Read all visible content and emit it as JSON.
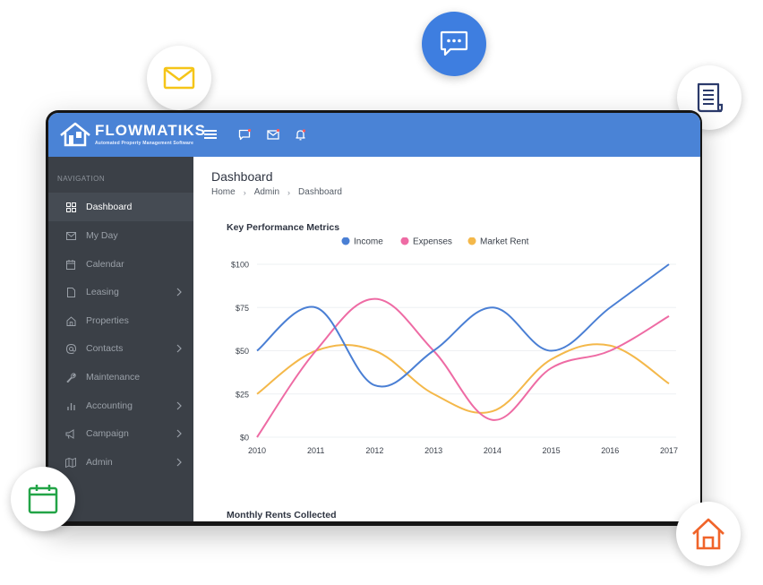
{
  "brand": {
    "name": "FLOWMATIKS",
    "tagline": "Automated Property Management Software"
  },
  "topbar_icons": [
    "menu-icon",
    "chat-icon",
    "mail-icon",
    "bell-icon"
  ],
  "sidebar": {
    "heading": "NAVIGATION",
    "items": [
      {
        "label": "Dashboard",
        "icon": "grid-icon",
        "active": true,
        "has_submenu": false
      },
      {
        "label": "My Day",
        "icon": "envelope-icon",
        "active": false,
        "has_submenu": false
      },
      {
        "label": "Calendar",
        "icon": "calendar-icon",
        "active": false,
        "has_submenu": false
      },
      {
        "label": "Leasing",
        "icon": "document-icon",
        "active": false,
        "has_submenu": true
      },
      {
        "label": "Properties",
        "icon": "home-icon",
        "active": false,
        "has_submenu": false
      },
      {
        "label": "Contacts",
        "icon": "at-icon",
        "active": false,
        "has_submenu": true
      },
      {
        "label": "Maintenance",
        "icon": "wrench-icon",
        "active": false,
        "has_submenu": false
      },
      {
        "label": "Accounting",
        "icon": "bar-chart-icon",
        "active": false,
        "has_submenu": true
      },
      {
        "label": "Campaign",
        "icon": "megaphone-icon",
        "active": false,
        "has_submenu": true
      },
      {
        "label": "Admin",
        "icon": "map-icon",
        "active": false,
        "has_submenu": true
      }
    ]
  },
  "page": {
    "title": "Dashboard",
    "breadcrumb": [
      "Home",
      "Admin",
      "Dashboard"
    ],
    "card1_title": "Key Performance Metrics",
    "card2_title": "Monthly Rents Collected"
  },
  "colors": {
    "topbar": "#4a83d6",
    "sidebar": "#3b4047",
    "income": "#4a7fd4",
    "expenses": "#ee6ba4",
    "market_rent": "#f4b84a"
  },
  "chart_data": {
    "type": "line",
    "title": "Key Performance Metrics",
    "x": [
      "2010",
      "2011",
      "2012",
      "2013",
      "2014",
      "2015",
      "2016",
      "2017"
    ],
    "y_ticks": [
      "$0",
      "$25",
      "$50",
      "$75",
      "$100"
    ],
    "ylim": [
      0,
      100
    ],
    "grid": true,
    "legend_position": "top-center",
    "series": [
      {
        "name": "Income",
        "color": "#4a7fd4",
        "values": [
          50,
          75,
          30,
          50,
          75,
          50,
          75,
          100
        ]
      },
      {
        "name": "Expenses",
        "color": "#ee6ba4",
        "values": [
          0,
          50,
          80,
          50,
          10,
          40,
          50,
          70
        ]
      },
      {
        "name": "Market Rent",
        "color": "#f4b84a",
        "values": [
          25,
          50,
          50,
          25,
          15,
          45,
          53,
          31
        ]
      }
    ]
  },
  "floating_icons": [
    "mail-icon",
    "chat-icon",
    "document-icon",
    "calendar-icon",
    "home-icon"
  ]
}
